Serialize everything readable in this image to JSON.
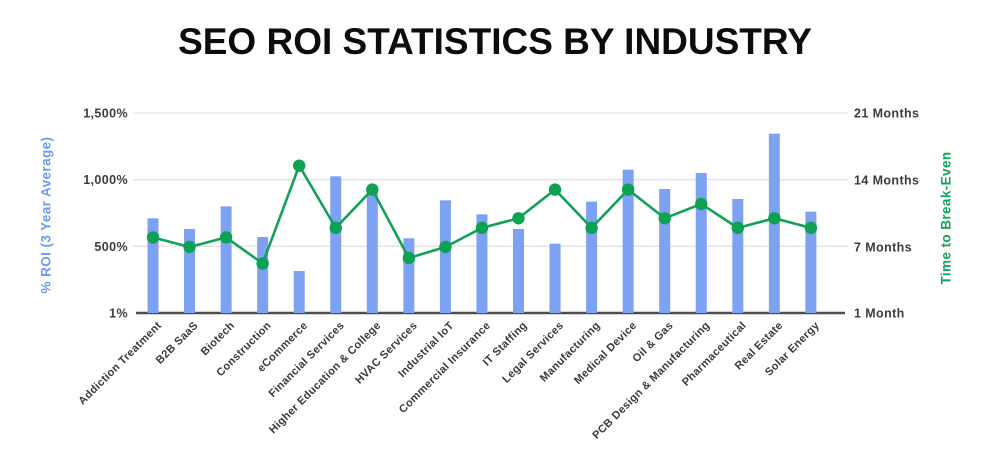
{
  "title": "SEO ROI STATISTICS BY INDUSTRY",
  "chart_data": {
    "type": "bar",
    "subtype": "bar+line combo, dual y-axis",
    "categories": [
      "Addiction Treatment",
      "B2B SaaS",
      "Biotech",
      "Construction",
      "eCommerce",
      "Financial Services",
      "Higher Education & College",
      "HVAC Services",
      "Industrial IoT",
      "Commercial Insurance",
      "IT Staffing",
      "Legal Services",
      "Manufacturing",
      "Medical Device",
      "Oil & Gas",
      "PCB Design & Manufacturing",
      "Pharmaceutical",
      "Real Estate",
      "Solar Energy"
    ],
    "series": [
      {
        "name": "% ROI (3 Year Average)",
        "type": "bar",
        "axis": "left",
        "unit": "%",
        "values": [
          710,
          630,
          800,
          570,
          315,
          1025,
          915,
          560,
          845,
          740,
          630,
          520,
          835,
          1075,
          930,
          1050,
          855,
          1345,
          760
        ]
      },
      {
        "name": "Time to Break-Even",
        "type": "line",
        "axis": "right",
        "unit": "months",
        "values": [
          8,
          7,
          8,
          5.5,
          15.5,
          9,
          13,
          6,
          7,
          9,
          10,
          13,
          9,
          13,
          10,
          11.5,
          9,
          10,
          9
        ]
      }
    ],
    "left_axis": {
      "label": "% ROI (3 Year Average)",
      "ticks": [
        "1,500%",
        "1,000%",
        "500%",
        "1%"
      ],
      "tick_values": [
        1500,
        1000,
        500,
        1
      ],
      "range": [
        1,
        1500
      ]
    },
    "right_axis": {
      "label": "Time to Break-Even",
      "ticks": [
        "21 Months",
        "14 Months",
        "7 Months",
        "1 Month"
      ],
      "tick_values": [
        21,
        14,
        7,
        1
      ],
      "range": [
        1,
        21
      ]
    },
    "grid": true,
    "legend": "none",
    "colors": {
      "bar": "#7da2f4",
      "line": "#12a158",
      "marker": "#0da152",
      "gridline": "#e3e3e3",
      "baseline": "#4f4f4f",
      "tick_text": "#3d3d3d",
      "category_text": "#3a3a3a",
      "title_text": "#0c0c0c",
      "left_axis_title": "#6b9df8",
      "right_axis_title": "#10a45f"
    }
  }
}
